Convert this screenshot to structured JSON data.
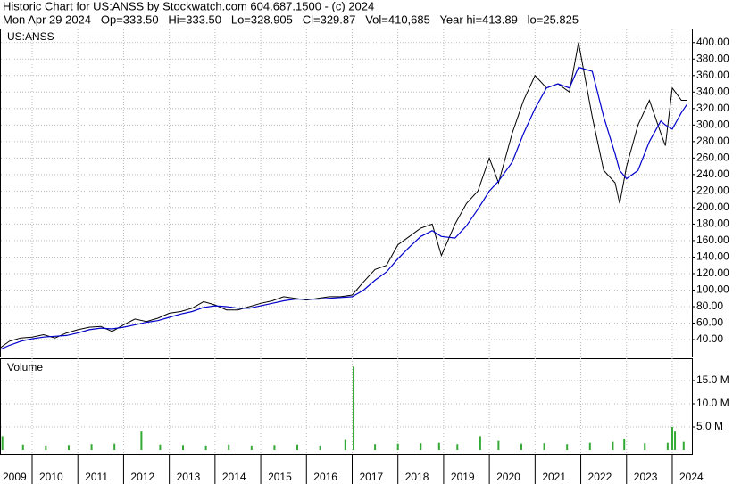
{
  "header": {
    "title": "Historic Chart for US:ANSS by Stockwatch.com 604.687.1500 - (c) 2024",
    "quote": "Mon Apr 29 2024   Op=333.50   Hi=333.50   Lo=328.905   Cl=329.87   Vol=410,685   Year hi=413.89   lo=25.825"
  },
  "chart_data": [
    {
      "type": "line",
      "title": "US:ANSS",
      "grid": true,
      "x": [
        2009.3,
        2009.5,
        2009.75,
        2010.0,
        2010.25,
        2010.5,
        2010.75,
        2011.0,
        2011.25,
        2011.5,
        2011.75,
        2012.0,
        2012.25,
        2012.5,
        2012.75,
        2013.0,
        2013.25,
        2013.5,
        2013.75,
        2014.0,
        2014.25,
        2014.5,
        2014.75,
        2015.0,
        2015.25,
        2015.5,
        2015.75,
        2016.0,
        2016.25,
        2016.5,
        2016.75,
        2017.0,
        2017.25,
        2017.5,
        2017.75,
        2018.0,
        2018.25,
        2018.5,
        2018.75,
        2018.95,
        2019.25,
        2019.5,
        2019.75,
        2020.0,
        2020.2,
        2020.5,
        2020.75,
        2021.0,
        2021.25,
        2021.5,
        2021.75,
        2021.95,
        2022.25,
        2022.5,
        2022.75,
        2022.85,
        2023.0,
        2023.25,
        2023.5,
        2023.75,
        2023.85,
        2024.0,
        2024.2,
        2024.32
      ],
      "series": [
        {
          "color": "#000000",
          "values": [
            30,
            38,
            42,
            43,
            46,
            42,
            48,
            52,
            55,
            56,
            50,
            58,
            65,
            62,
            66,
            72,
            74,
            78,
            86,
            82,
            76,
            76,
            80,
            84,
            87,
            92,
            90,
            88,
            90,
            92,
            92,
            94,
            110,
            125,
            130,
            155,
            165,
            175,
            180,
            142,
            180,
            205,
            220,
            260,
            230,
            290,
            330,
            360,
            345,
            350,
            340,
            400,
            310,
            245,
            230,
            205,
            250,
            300,
            330,
            290,
            275,
            345,
            330,
            330
          ]
        },
        {
          "color": "#0000cc",
          "values": [
            28,
            33,
            38,
            41,
            43,
            44,
            45,
            48,
            52,
            54,
            53,
            55,
            58,
            61,
            63,
            67,
            71,
            74,
            79,
            81,
            80,
            78,
            78,
            81,
            84,
            87,
            89,
            89,
            89,
            90,
            91,
            92,
            100,
            112,
            122,
            138,
            152,
            165,
            172,
            165,
            163,
            178,
            198,
            220,
            232,
            255,
            290,
            320,
            345,
            350,
            345,
            370,
            365,
            310,
            265,
            245,
            235,
            245,
            280,
            305,
            300,
            295,
            315,
            325
          ]
        }
      ],
      "xlim": [
        2009.297,
        2024.43
      ],
      "xticks": [
        2009,
        2010,
        2011,
        2012,
        2013,
        2014,
        2015,
        2016,
        2017,
        2018,
        2019,
        2020,
        2021,
        2022,
        2023,
        2024
      ],
      "ylim": [
        19.5,
        417
      ],
      "yticks": [
        {
          "value": 40,
          "label": "40.00"
        },
        {
          "value": 60,
          "label": "60.00"
        },
        {
          "value": 80,
          "label": "80.00"
        },
        {
          "value": 100,
          "label": "100.00"
        },
        {
          "value": 120,
          "label": "120.00"
        },
        {
          "value": 140,
          "label": "140.00"
        },
        {
          "value": 160,
          "label": "160.00"
        },
        {
          "value": 180,
          "label": "180.00"
        },
        {
          "value": 200,
          "label": "200.00"
        },
        {
          "value": 220,
          "label": "220.00"
        },
        {
          "value": 240,
          "label": "240.00"
        },
        {
          "value": 260,
          "label": "260.00"
        },
        {
          "value": 280,
          "label": "280.00"
        },
        {
          "value": 300,
          "label": "300.00"
        },
        {
          "value": 320,
          "label": "320.00"
        },
        {
          "value": 340,
          "label": "340.00"
        },
        {
          "value": 360,
          "label": "360.00"
        },
        {
          "value": 380,
          "label": "380.00"
        },
        {
          "value": 400,
          "label": "400.00"
        }
      ]
    },
    {
      "type": "bar",
      "title": "Volume",
      "grid": true,
      "color": "#33aa33",
      "x": [
        2009.35,
        2009.8,
        2010.3,
        2010.8,
        2011.3,
        2011.8,
        2012.39,
        2012.8,
        2013.3,
        2013.8,
        2014.3,
        2014.8,
        2015.3,
        2015.8,
        2016.3,
        2016.85,
        2017.03,
        2017.5,
        2018.0,
        2018.5,
        2018.9,
        2019.3,
        2019.8,
        2020.2,
        2020.7,
        2021.2,
        2021.7,
        2022.2,
        2022.7,
        2022.95,
        2023.4,
        2023.9,
        2024.0,
        2024.06,
        2024.25
      ],
      "values": [
        3000000,
        1200000,
        1000000,
        1100000,
        1300000,
        1400000,
        4000000,
        1200000,
        1100000,
        1000000,
        1200000,
        1000000,
        1100000,
        1200000,
        1000000,
        2200000,
        18000000,
        1300000,
        1400000,
        1500000,
        1600000,
        1300000,
        3000000,
        2000000,
        1400000,
        1500000,
        1300000,
        1600000,
        1800000,
        2500000,
        1500000,
        1600000,
        5000000,
        4000000,
        1800000
      ],
      "ylim": [
        0,
        19800000
      ],
      "yticks": [
        {
          "value": 5000000,
          "label": "5.0 M"
        },
        {
          "value": 10000000,
          "label": "10.0 M"
        },
        {
          "value": 15000000,
          "label": "15.0 M"
        }
      ]
    }
  ]
}
